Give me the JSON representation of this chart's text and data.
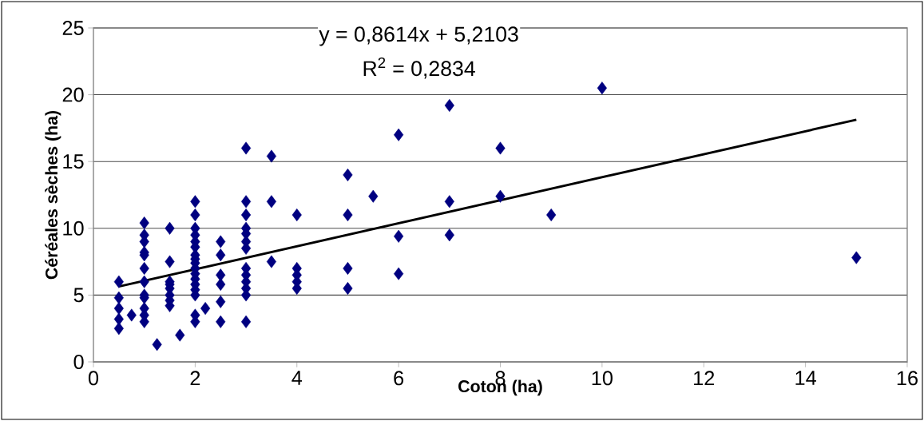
{
  "chart_data": {
    "type": "scatter",
    "xlabel": "Coton (ha)",
    "ylabel": "Céréales sèches (ha)",
    "xlim": [
      0,
      16
    ],
    "ylim": [
      0,
      25
    ],
    "xticks": [
      0,
      2,
      4,
      6,
      8,
      10,
      12,
      14,
      16
    ],
    "yticks": [
      0,
      5,
      10,
      15,
      20,
      25
    ],
    "grid": "y",
    "marker": "diamond",
    "annotations": [
      "y = 0,8614x + 5,2103",
      "R$^{2}$ = 0,2834"
    ],
    "series": [
      {
        "color": "#000080",
        "x": [
          0.5,
          0.5,
          0.5,
          0.5,
          0.5,
          0.75,
          1,
          1,
          1,
          1,
          1,
          1,
          1,
          1,
          1,
          1,
          1,
          1,
          1.25,
          1.5,
          1.5,
          1.5,
          1.5,
          1.5,
          1.5,
          1.5,
          1.5,
          1.7,
          2,
          2,
          2,
          2,
          2,
          2,
          2,
          2,
          2,
          2,
          2,
          2,
          2,
          2,
          2,
          2,
          2,
          2.2,
          2.5,
          2.5,
          2.5,
          2.5,
          2.5,
          2.5,
          3,
          3,
          3,
          3,
          3,
          3,
          3,
          3,
          3,
          3,
          3,
          3,
          3,
          3.5,
          3.5,
          3.5,
          4,
          4,
          4,
          4,
          4,
          5,
          5,
          5,
          5,
          5.5,
          6,
          6,
          6,
          7,
          7,
          7,
          8,
          8,
          9,
          10,
          15
        ],
        "values": [
          6,
          4.8,
          4,
          3.2,
          2.5,
          3.5,
          10.4,
          9.5,
          9,
          8.2,
          8,
          7,
          6,
          5,
          4.8,
          4,
          3.5,
          3,
          1.3,
          10,
          7.5,
          6,
          5.8,
          5.5,
          5,
          4.6,
          4.2,
          2,
          12,
          11,
          10,
          9.5,
          9,
          8.6,
          8,
          7.7,
          7.4,
          7,
          6.6,
          6.2,
          5.8,
          5.4,
          5,
          3.5,
          3,
          4,
          9,
          8,
          6.5,
          5.8,
          4.5,
          3,
          16,
          12,
          11,
          10,
          9.6,
          9,
          8.5,
          7,
          6.5,
          6,
          5.5,
          5,
          3,
          15.4,
          12,
          7.5,
          11,
          7,
          6.5,
          6,
          5.5,
          14,
          11,
          7,
          5.5,
          12.4,
          17,
          9.4,
          6.6,
          19.2,
          12,
          9.5,
          16,
          12.4,
          11,
          20.5,
          7.8
        ]
      },
      {
        "type": "line",
        "marker": "none",
        "color": "#000000",
        "x": [
          0.5,
          15
        ],
        "values": [
          5.64,
          18.13
        ]
      }
    ]
  }
}
